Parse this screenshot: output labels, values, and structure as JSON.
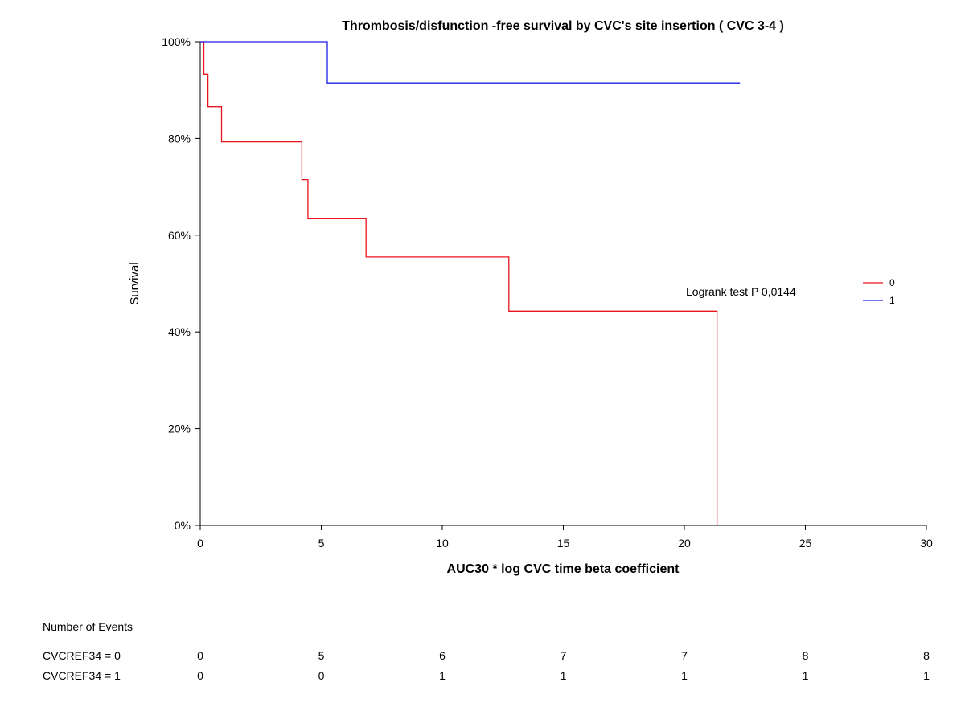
{
  "chart_data": {
    "type": "line",
    "title": "Thrombosis/disfunction  -free survival  by CVC's site insertion ( CVC 3-4 )",
    "xlabel": "AUC30 * log CVC time beta coefficient",
    "ylabel": "Survival",
    "xlim": [
      0,
      30
    ],
    "ylim": [
      0,
      100
    ],
    "x_ticks": [
      0,
      5,
      10,
      15,
      20,
      25,
      30
    ],
    "y_ticks": [
      0,
      20,
      40,
      60,
      80,
      100
    ],
    "y_tick_labels": [
      "0%",
      "20%",
      "40%",
      "60%",
      "80%",
      "100%"
    ],
    "step": true,
    "grid": false,
    "legend_position": "right",
    "series": [
      {
        "name": "0",
        "color": "#e8141c",
        "x": [
          0,
          0.15,
          0.15,
          0.32,
          0.32,
          0.88,
          0.88,
          4.2,
          4.2,
          4.45,
          4.45,
          6.85,
          6.85,
          12.75,
          12.75,
          21.35,
          21.35
        ],
        "y": [
          100,
          100,
          93.3,
          93.3,
          86.6,
          86.6,
          79.3,
          79.3,
          71.5,
          71.5,
          63.5,
          63.5,
          55.5,
          55.5,
          44.3,
          44.3,
          0
        ]
      },
      {
        "name": "1",
        "color": "#1e1ee6",
        "x": [
          0,
          5.25,
          5.25,
          22.3
        ],
        "y": [
          100,
          100,
          91.5,
          91.5
        ]
      }
    ],
    "annotations": [
      "Logrank test P 0,0144"
    ],
    "risk_table": {
      "title": "Number of Events",
      "times": [
        0,
        5,
        10,
        15,
        20,
        25,
        30
      ],
      "rows": [
        {
          "label": "CVCREF34 = 0",
          "values": [
            "0",
            "5",
            "6",
            "7",
            "7",
            "8",
            "8"
          ]
        },
        {
          "label": "CVCREF34 = 1",
          "values": [
            "0",
            "0",
            "1",
            "1",
            "1",
            "1",
            "1"
          ]
        }
      ]
    }
  }
}
